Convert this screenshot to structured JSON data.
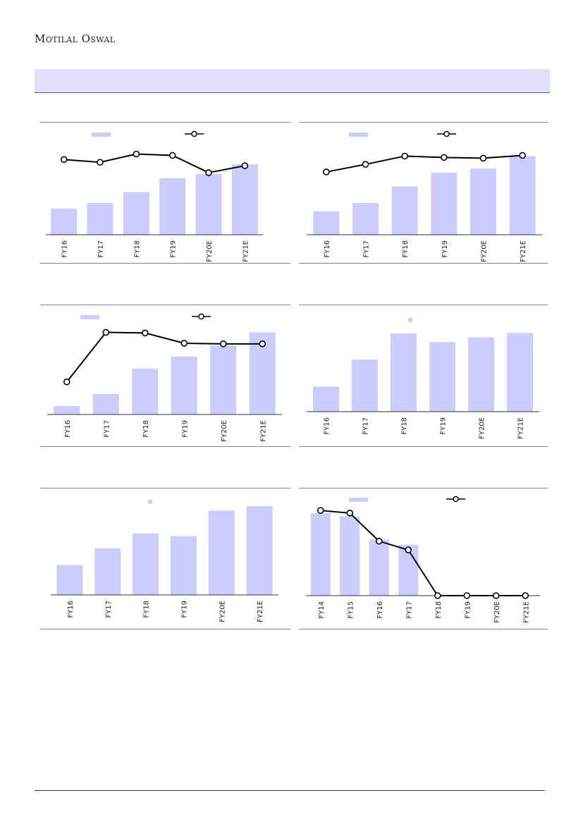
{
  "header": {
    "brand": "Motilal Oswal"
  },
  "colors": {
    "bar": "#ccccff",
    "line": "#000000",
    "marker_fill": "#ffffff",
    "axis": "#333333",
    "rule": "#8080c0"
  },
  "chart_data": [
    {
      "type": "bar",
      "categories": [
        "FY16",
        "FY17",
        "FY18",
        "FY19",
        "FY20E",
        "FY21E"
      ],
      "series": [
        {
          "type": "bar",
          "values": [
            19,
            23,
            31,
            41,
            44,
            51
          ]
        },
        {
          "type": "line",
          "values": [
            54.5,
            52.5,
            58.5,
            57.5,
            45,
            50
          ]
        }
      ],
      "ylim": [
        0,
        70
      ],
      "legend": "top"
    },
    {
      "type": "bar",
      "categories": [
        "FY16",
        "FY17",
        "FY18",
        "FY19",
        "FY20E",
        "FY21E"
      ],
      "series": [
        {
          "type": "bar",
          "values": [
            17,
            23,
            35,
            45,
            48,
            57
          ]
        },
        {
          "type": "line",
          "values": [
            45.5,
            51,
            57,
            56,
            55.5,
            57.5
          ]
        }
      ],
      "ylim": [
        0,
        70
      ],
      "legend": "top"
    },
    {
      "type": "bar",
      "categories": [
        "FY16",
        "FY17",
        "FY18",
        "FY19",
        "FY20E",
        "FY21E"
      ],
      "series": [
        {
          "type": "bar",
          "values": [
            7,
            17,
            38,
            48,
            57,
            68
          ]
        },
        {
          "type": "line",
          "values": [
            27,
            68,
            67.5,
            59,
            58.5,
            58.5
          ]
        }
      ],
      "ylim": [
        0,
        80
      ],
      "legend": "top"
    },
    {
      "type": "bar",
      "categories": [
        "FY16",
        "FY17",
        "FY18",
        "FY19",
        "FY20E",
        "FY21E"
      ],
      "series": [
        {
          "type": "bar",
          "values": [
            26,
            54,
            81,
            72,
            77,
            81.5
          ]
        }
      ],
      "ylim": [
        0,
        100
      ],
      "legend": "top"
    },
    {
      "type": "bar",
      "categories": [
        "FY16",
        "FY17",
        "FY18",
        "FY19",
        "FY20E",
        "FY21E"
      ],
      "series": [
        {
          "type": "bar",
          "values": [
            34,
            53,
            70,
            67,
            96,
            101
          ]
        }
      ],
      "ylim": [
        0,
        110
      ],
      "legend": "top"
    },
    {
      "type": "bar",
      "categories": [
        "FY14",
        "FY15",
        "FY16",
        "FY17",
        "FY18",
        "FY19",
        "FY20E",
        "FY21E"
      ],
      "series": [
        {
          "type": "bar",
          "values": [
            94,
            90,
            64,
            58,
            0,
            0,
            0,
            0
          ]
        },
        {
          "type": "line",
          "values": [
            97,
            94,
            62,
            52,
            0,
            0,
            0,
            0
          ]
        }
      ],
      "ylim": [
        0,
        110
      ],
      "legend": "top"
    }
  ]
}
